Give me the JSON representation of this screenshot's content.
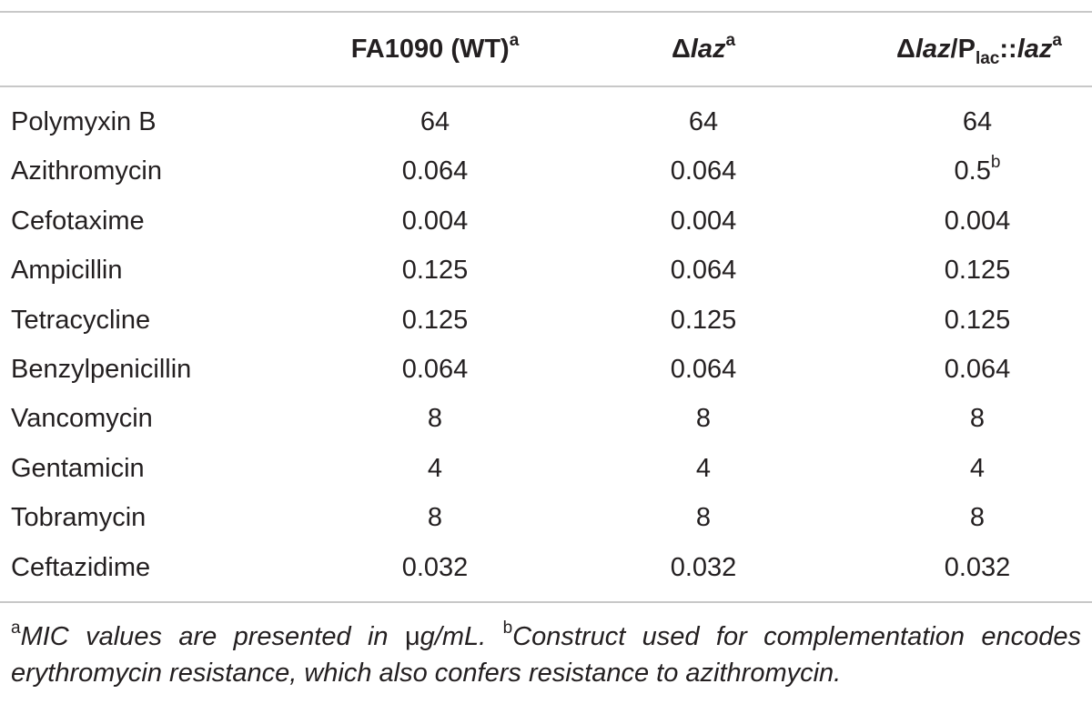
{
  "header": {
    "col1_main": "FA1090 (WT)",
    "col1_sup": "a",
    "col2_delta": "Δ",
    "col2_gene": "laz",
    "col2_sup": "a",
    "col3_delta": "Δ",
    "col3_gene": "laz",
    "col3_slash_p": "/P",
    "col3_sub": "lac",
    "col3_colons": "::",
    "col3_gene2": "laz",
    "col3_sup": "a"
  },
  "rows": [
    {
      "drug": "Polymyxin B",
      "v1": "64",
      "v2": "64",
      "v3": "64",
      "v3_sup": ""
    },
    {
      "drug": "Azithromycin",
      "v1": "0.064",
      "v2": "0.064",
      "v3": "0.5",
      "v3_sup": "b"
    },
    {
      "drug": "Cefotaxime",
      "v1": "0.004",
      "v2": "0.004",
      "v3": "0.004",
      "v3_sup": ""
    },
    {
      "drug": "Ampicillin",
      "v1": "0.125",
      "v2": "0.064",
      "v3": "0.125",
      "v3_sup": ""
    },
    {
      "drug": "Tetracycline",
      "v1": "0.125",
      "v2": "0.125",
      "v3": "0.125",
      "v3_sup": ""
    },
    {
      "drug": "Benzylpenicillin",
      "v1": "0.064",
      "v2": "0.064",
      "v3": "0.064",
      "v3_sup": ""
    },
    {
      "drug": "Vancomycin",
      "v1": "8",
      "v2": "8",
      "v3": "8",
      "v3_sup": ""
    },
    {
      "drug": "Gentamicin",
      "v1": "4",
      "v2": "4",
      "v3": "4",
      "v3_sup": ""
    },
    {
      "drug": "Tobramycin",
      "v1": "8",
      "v2": "8",
      "v3": "8",
      "v3_sup": ""
    },
    {
      "drug": "Ceftazidime",
      "v1": "0.032",
      "v2": "0.032",
      "v3": "0.032",
      "v3_sup": ""
    }
  ],
  "footnote": {
    "a_mark": "a",
    "a_text_before": "MIC values are presented in ",
    "a_unit_mu": "μ",
    "a_text_after": "g/mL. ",
    "b_mark": "b",
    "b_text": "Construct used for complementation encodes erythromycin resistance, which also confers resistance to azithromycin."
  }
}
